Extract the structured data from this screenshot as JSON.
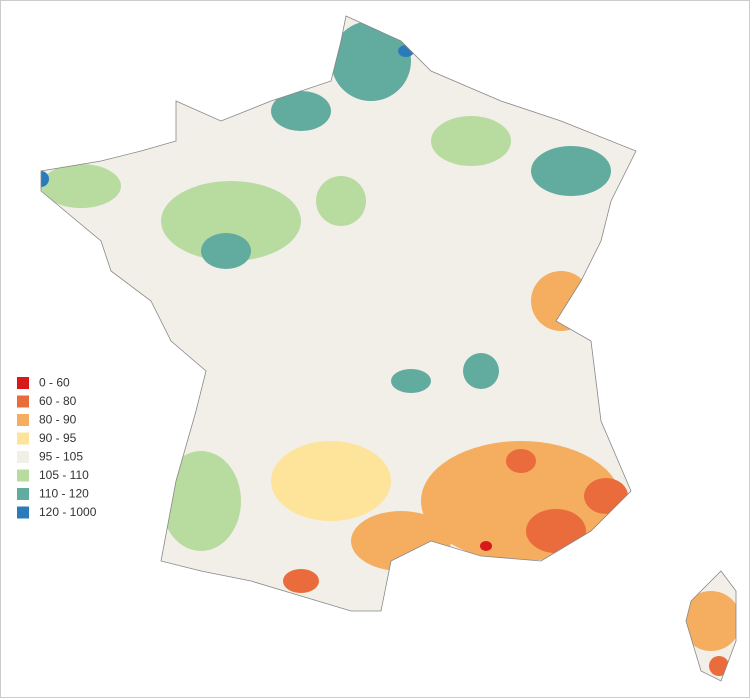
{
  "legend": {
    "items": [
      {
        "label": "0 - 60",
        "color": "#d7191c"
      },
      {
        "label": "60 - 80",
        "color": "#ea6b3c"
      },
      {
        "label": "80 - 90",
        "color": "#f5ad5f"
      },
      {
        "label": "90 - 95",
        "color": "#fde49a"
      },
      {
        "label": "95 - 105",
        "color": "#f2efe9"
      },
      {
        "label": "105 - 110",
        "color": "#b8dba0"
      },
      {
        "label": "110 - 120",
        "color": "#62ab9f"
      },
      {
        "label": "120 - 1000",
        "color": "#2b7bba"
      }
    ]
  }
}
